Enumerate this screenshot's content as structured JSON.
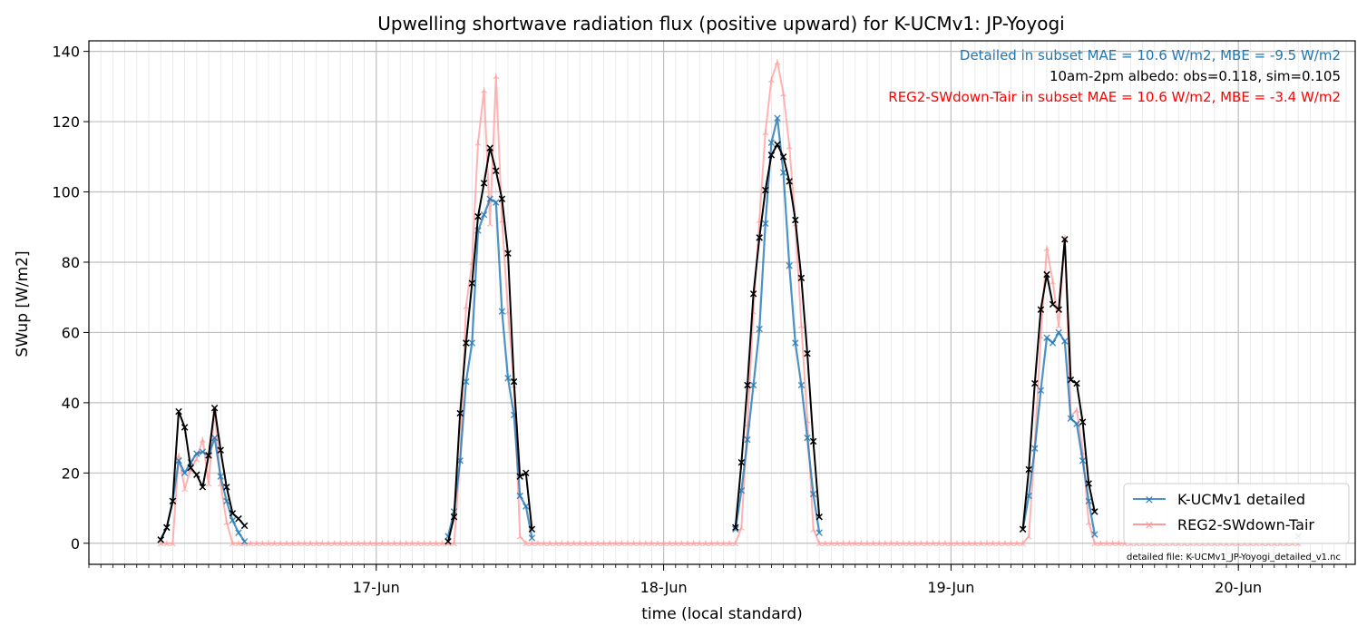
{
  "chart_data": {
    "type": "line",
    "title": "Upwelling shortwave radiation flux (positive upward) for K-UCMv1: JP-Yoyogi",
    "xlabel": "time (local standard)",
    "ylabel": "SWup [W/m2]",
    "x_ticks": [
      "17-Jun",
      "18-Jun",
      "19-Jun",
      "20-Jun"
    ],
    "y_ticks": [
      "0",
      "20",
      "40",
      "60",
      "80",
      "100",
      "120",
      "140"
    ],
    "ylim": [
      -6,
      143
    ],
    "grid": true,
    "legend_position": "lower right",
    "annotations": [
      {
        "text": "Detailed in subset MAE = 10.6 W/m2, MBE = -9.5 W/m2",
        "color": "#1f77b4"
      },
      {
        "text": "10am-2pm albedo: obs=0.118, sim=0.105",
        "color": "#000000"
      },
      {
        "text": "REG2-SWdown-Tair in subset MAE = 10.6 W/m2, MBE = -3.4 W/m2",
        "color": "#ff0000"
      }
    ],
    "footnote": "detailed file: K-UCMv1_JP-Yoyogi_detailed_v1.nc",
    "series": [
      {
        "name": "K-UCMv1 detailed",
        "color": "#1f77b4",
        "points": [
          [
            6.0,
            1
          ],
          [
            6.5,
            4.5
          ],
          [
            7.0,
            12
          ],
          [
            7.5,
            23.5
          ],
          [
            8.0,
            20
          ],
          [
            8.5,
            23
          ],
          [
            9.0,
            25.5
          ],
          [
            9.5,
            26
          ],
          [
            10.0,
            25
          ],
          [
            10.5,
            30
          ],
          [
            11.0,
            19
          ],
          [
            11.5,
            12
          ],
          [
            12.0,
            6.5
          ],
          [
            12.5,
            3
          ],
          [
            13.0,
            0.5
          ],
          [
            30.0,
            2
          ],
          [
            30.5,
            9
          ],
          [
            31.0,
            23.5
          ],
          [
            31.5,
            46
          ],
          [
            32.0,
            57
          ],
          [
            32.5,
            89
          ],
          [
            33.0,
            93.5
          ],
          [
            33.5,
            98
          ],
          [
            34.0,
            97
          ],
          [
            34.5,
            66
          ],
          [
            35.0,
            47
          ],
          [
            35.5,
            36.5
          ],
          [
            36.0,
            13.5
          ],
          [
            36.5,
            10.5
          ],
          [
            37.0,
            1.5
          ],
          [
            54.0,
            4
          ],
          [
            54.5,
            15
          ],
          [
            55.0,
            29.5
          ],
          [
            55.5,
            45
          ],
          [
            56.0,
            61
          ],
          [
            56.5,
            91
          ],
          [
            57.0,
            114
          ],
          [
            57.5,
            121
          ],
          [
            58.0,
            105.5
          ],
          [
            58.5,
            79
          ],
          [
            59.0,
            57
          ],
          [
            59.5,
            45
          ],
          [
            60.0,
            30
          ],
          [
            60.5,
            14
          ],
          [
            61.0,
            3
          ],
          [
            78.0,
            4
          ],
          [
            78.5,
            13.5
          ],
          [
            79.0,
            27
          ],
          [
            79.5,
            43.5
          ],
          [
            80.0,
            58.5
          ],
          [
            80.5,
            57
          ],
          [
            81.0,
            60
          ],
          [
            81.5,
            57.5
          ],
          [
            82.0,
            35.5
          ],
          [
            82.5,
            34
          ],
          [
            83.0,
            23.5
          ],
          [
            83.5,
            12
          ],
          [
            84.0,
            2.5
          ],
          [
            101.0,
            2
          ]
        ]
      },
      {
        "name": "REG2-SWdown-Tair",
        "color": "#ff9a9a",
        "points": [
          [
            6.0,
            0
          ],
          [
            6.5,
            0
          ],
          [
            7.0,
            0
          ],
          [
            7.5,
            25
          ],
          [
            8.0,
            15.5
          ],
          [
            8.5,
            21
          ],
          [
            9.0,
            24
          ],
          [
            9.5,
            29.5
          ],
          [
            10.0,
            17
          ],
          [
            10.5,
            38
          ],
          [
            11.0,
            17
          ],
          [
            11.5,
            6
          ],
          [
            12.0,
            0
          ],
          [
            12.5,
            0
          ],
          [
            13.0,
            0
          ],
          [
            13.5,
            0
          ],
          [
            14.0,
            0
          ],
          [
            14.5,
            0
          ],
          [
            15.0,
            0
          ],
          [
            15.5,
            0
          ],
          [
            16.0,
            0
          ],
          [
            16.5,
            0
          ],
          [
            17.0,
            0
          ],
          [
            17.5,
            0
          ],
          [
            18.0,
            0
          ],
          [
            18.5,
            0
          ],
          [
            19.0,
            0
          ],
          [
            19.5,
            0
          ],
          [
            20.0,
            0
          ],
          [
            20.5,
            0
          ],
          [
            21.0,
            0
          ],
          [
            21.5,
            0
          ],
          [
            22.0,
            0
          ],
          [
            22.5,
            0
          ],
          [
            23.0,
            0
          ],
          [
            23.5,
            0
          ],
          [
            24.0,
            0
          ],
          [
            24.5,
            0
          ],
          [
            25.0,
            0
          ],
          [
            25.5,
            0
          ],
          [
            26.0,
            0
          ],
          [
            26.5,
            0
          ],
          [
            27.0,
            0
          ],
          [
            27.5,
            0
          ],
          [
            28.0,
            0
          ],
          [
            28.5,
            0
          ],
          [
            29.0,
            0
          ],
          [
            29.5,
            0
          ],
          [
            30.0,
            0
          ],
          [
            30.5,
            0
          ],
          [
            31.0,
            24
          ],
          [
            31.5,
            67.5
          ],
          [
            32.0,
            80
          ],
          [
            32.5,
            114
          ],
          [
            33.0,
            129
          ],
          [
            33.5,
            91
          ],
          [
            34.0,
            133
          ],
          [
            34.5,
            92
          ],
          [
            35.0,
            66
          ],
          [
            35.5,
            45
          ],
          [
            36.0,
            2
          ],
          [
            36.5,
            0
          ],
          [
            37.0,
            0
          ],
          [
            37.5,
            0
          ],
          [
            38.0,
            0
          ],
          [
            38.5,
            0
          ],
          [
            39.0,
            0
          ],
          [
            39.5,
            0
          ],
          [
            40.0,
            0
          ],
          [
            40.5,
            0
          ],
          [
            41.0,
            0
          ],
          [
            41.5,
            0
          ],
          [
            42.0,
            0
          ],
          [
            42.5,
            0
          ],
          [
            43.0,
            0
          ],
          [
            43.5,
            0
          ],
          [
            44.0,
            0
          ],
          [
            44.5,
            0
          ],
          [
            45.0,
            0
          ],
          [
            45.5,
            0
          ],
          [
            46.0,
            0
          ],
          [
            46.5,
            0
          ],
          [
            47.0,
            0
          ],
          [
            47.5,
            0
          ],
          [
            48.0,
            0
          ],
          [
            48.5,
            0
          ],
          [
            49.0,
            0
          ],
          [
            49.5,
            0
          ],
          [
            50.0,
            0
          ],
          [
            50.5,
            0
          ],
          [
            51.0,
            0
          ],
          [
            51.5,
            0
          ],
          [
            52.0,
            0
          ],
          [
            52.5,
            0
          ],
          [
            53.0,
            0
          ],
          [
            53.5,
            0
          ],
          [
            54.0,
            0
          ],
          [
            54.5,
            4.5
          ],
          [
            55.0,
            34
          ],
          [
            55.5,
            66
          ],
          [
            56.0,
            92
          ],
          [
            56.5,
            117
          ],
          [
            57.0,
            132
          ],
          [
            57.5,
            137
          ],
          [
            58.0,
            128
          ],
          [
            58.5,
            113
          ],
          [
            59.0,
            91
          ],
          [
            59.5,
            62
          ],
          [
            60.0,
            35
          ],
          [
            60.5,
            4
          ],
          [
            61.0,
            0
          ],
          [
            61.5,
            0
          ],
          [
            62.0,
            0
          ],
          [
            62.5,
            0
          ],
          [
            63.0,
            0
          ],
          [
            63.5,
            0
          ],
          [
            64.0,
            0
          ],
          [
            64.5,
            0
          ],
          [
            65.0,
            0
          ],
          [
            65.5,
            0
          ],
          [
            66.0,
            0
          ],
          [
            66.5,
            0
          ],
          [
            67.0,
            0
          ],
          [
            67.5,
            0
          ],
          [
            68.0,
            0
          ],
          [
            68.5,
            0
          ],
          [
            69.0,
            0
          ],
          [
            69.5,
            0
          ],
          [
            70.0,
            0
          ],
          [
            70.5,
            0
          ],
          [
            71.0,
            0
          ],
          [
            71.5,
            0
          ],
          [
            72.0,
            0
          ],
          [
            72.5,
            0
          ],
          [
            73.0,
            0
          ],
          [
            73.5,
            0
          ],
          [
            74.0,
            0
          ],
          [
            74.5,
            0
          ],
          [
            75.0,
            0
          ],
          [
            75.5,
            0
          ],
          [
            76.0,
            0
          ],
          [
            76.5,
            0
          ],
          [
            77.0,
            0
          ],
          [
            77.5,
            0
          ],
          [
            78.0,
            0
          ],
          [
            78.5,
            2
          ],
          [
            79.0,
            28
          ],
          [
            79.5,
            59
          ],
          [
            80.0,
            84
          ],
          [
            80.5,
            74.5
          ],
          [
            81.0,
            62
          ],
          [
            81.5,
            87
          ],
          [
            82.0,
            36
          ],
          [
            82.5,
            38
          ],
          [
            83.0,
            26
          ],
          [
            83.5,
            6
          ],
          [
            84.0,
            0
          ],
          [
            84.5,
            0
          ],
          [
            85.0,
            0
          ],
          [
            85.5,
            0
          ],
          [
            86.0,
            0
          ],
          [
            86.5,
            0
          ],
          [
            87.0,
            0
          ],
          [
            87.5,
            0
          ],
          [
            88.0,
            0
          ],
          [
            88.5,
            0
          ],
          [
            89.0,
            0
          ],
          [
            89.5,
            0
          ],
          [
            90.0,
            0
          ],
          [
            90.5,
            0
          ],
          [
            91.0,
            0
          ],
          [
            91.5,
            0
          ],
          [
            92.0,
            0
          ],
          [
            92.5,
            0
          ],
          [
            93.0,
            0
          ],
          [
            93.5,
            0
          ],
          [
            94.0,
            0
          ],
          [
            94.5,
            0
          ],
          [
            95.0,
            0
          ],
          [
            95.5,
            0
          ],
          [
            96.0,
            0
          ],
          [
            96.5,
            0
          ],
          [
            97.0,
            0
          ],
          [
            97.5,
            0
          ],
          [
            98.0,
            0
          ],
          [
            98.5,
            0
          ],
          [
            99.0,
            0
          ],
          [
            99.5,
            0
          ],
          [
            100.0,
            0
          ],
          [
            100.5,
            0
          ],
          [
            101.0,
            0
          ]
        ]
      },
      {
        "name": "",
        "color": "#000000",
        "points": [
          [
            6.0,
            1
          ],
          [
            6.5,
            4.5
          ],
          [
            7.0,
            12
          ],
          [
            7.5,
            37.5
          ],
          [
            8.0,
            33
          ],
          [
            8.5,
            21.5
          ],
          [
            9.0,
            19.5
          ],
          [
            9.5,
            16
          ],
          [
            10.0,
            25
          ],
          [
            10.5,
            38.5
          ],
          [
            11.0,
            26.5
          ],
          [
            11.5,
            16
          ],
          [
            12.0,
            8.5
          ],
          [
            12.5,
            7
          ],
          [
            13.0,
            5
          ],
          [
            30.0,
            0.5
          ],
          [
            30.5,
            7.5
          ],
          [
            31.0,
            37
          ],
          [
            31.5,
            57
          ],
          [
            32.0,
            74
          ],
          [
            32.5,
            93
          ],
          [
            33.0,
            102.5
          ],
          [
            33.5,
            112.5
          ],
          [
            34.0,
            106
          ],
          [
            34.5,
            98
          ],
          [
            35.0,
            82.5
          ],
          [
            35.5,
            46
          ],
          [
            36.0,
            19
          ],
          [
            36.5,
            20
          ],
          [
            37.0,
            4
          ],
          [
            54.0,
            4.5
          ],
          [
            54.5,
            23
          ],
          [
            55.0,
            45
          ],
          [
            55.5,
            71
          ],
          [
            56.0,
            87
          ],
          [
            56.5,
            100.5
          ],
          [
            57.0,
            110.5
          ],
          [
            57.5,
            113.5
          ],
          [
            58.0,
            110
          ],
          [
            58.5,
            103
          ],
          [
            59.0,
            92
          ],
          [
            59.5,
            75.5
          ],
          [
            60.0,
            54
          ],
          [
            60.5,
            29
          ],
          [
            61.0,
            7.5
          ],
          [
            78.0,
            4
          ],
          [
            78.5,
            21
          ],
          [
            79.0,
            45.5
          ],
          [
            79.5,
            66.5
          ],
          [
            80.0,
            76.5
          ],
          [
            80.5,
            68
          ],
          [
            81.0,
            66.5
          ],
          [
            81.5,
            86.5
          ],
          [
            82.0,
            46.5
          ],
          [
            82.5,
            45.5
          ],
          [
            83.0,
            34.5
          ],
          [
            83.5,
            17
          ],
          [
            84.0,
            9
          ]
        ]
      }
    ]
  }
}
